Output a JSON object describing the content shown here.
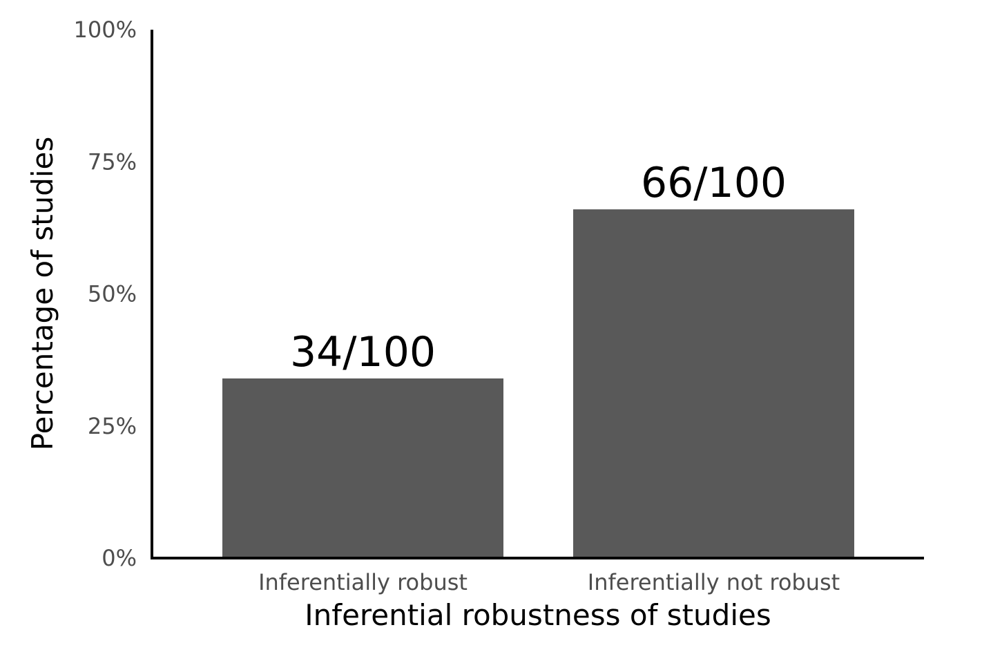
{
  "chart_data": {
    "type": "bar",
    "categories": [
      "Inferentially robust",
      "Inferentially not robust"
    ],
    "values": [
      34,
      66
    ],
    "data_labels": [
      "34/100",
      "66/100"
    ],
    "title": "",
    "xlabel": "Inferential robustness of studies",
    "ylabel": "Percentage of studies",
    "ylim": [
      0,
      100
    ],
    "y_ticks": [
      0,
      25,
      50,
      75,
      100
    ],
    "y_tick_labels": [
      "0%",
      "25%",
      "50%",
      "75%",
      "100%"
    ],
    "grid": false,
    "legend": "none",
    "colors": {
      "bar": "#595959",
      "axis": "#000000",
      "tick_text": "#4d4d4d",
      "label_text": "#000000"
    }
  }
}
